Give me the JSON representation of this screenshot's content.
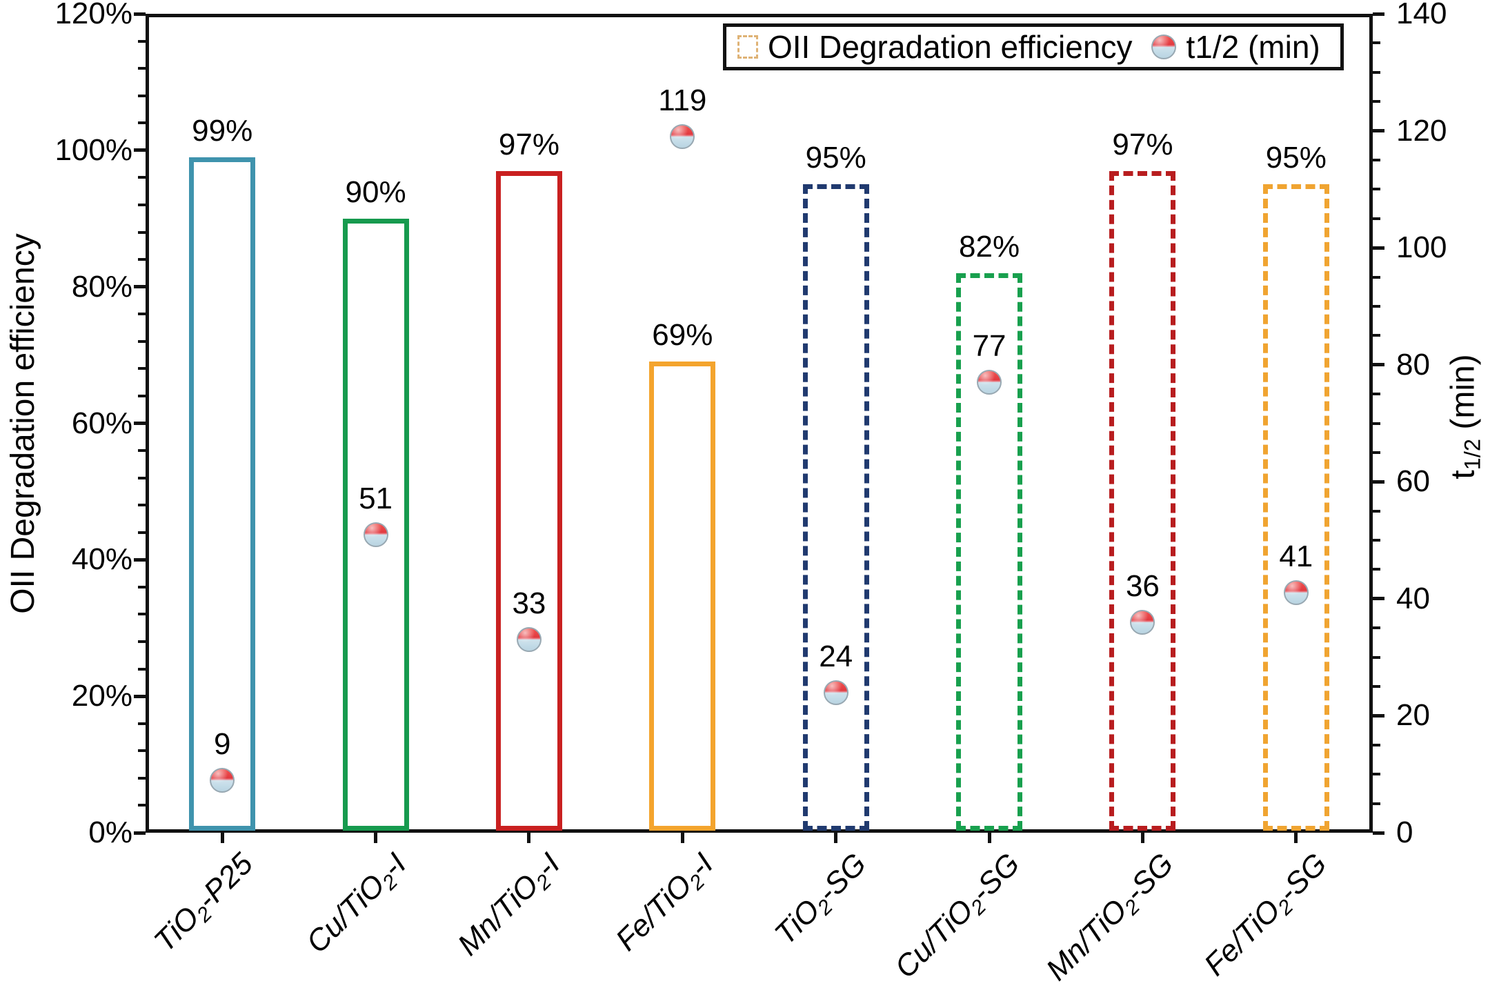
{
  "chart_data": {
    "type": "bar",
    "title": "",
    "categories": [
      {
        "pre": "TiO",
        "sub": "2",
        "post": "-P25"
      },
      {
        "pre": "Cu/TiO",
        "sub": "2",
        "post": "-I"
      },
      {
        "pre": "Mn/TiO",
        "sub": "2",
        "post": "-I"
      },
      {
        "pre": "Fe/TiO",
        "sub": "2",
        "post": "-I"
      },
      {
        "pre": "TiO",
        "sub": "2",
        "post": "-SG"
      },
      {
        "pre": "Cu/TiO",
        "sub": "2",
        "post": "-SG"
      },
      {
        "pre": "Mn/TiO",
        "sub": "2",
        "post": "-SG"
      },
      {
        "pre": "Fe/TiO",
        "sub": "2",
        "post": "-SG"
      }
    ],
    "series": [
      {
        "name": "OII Degradation efficiency",
        "unit": "%",
        "values": [
          99,
          90,
          97,
          69,
          95,
          82,
          97,
          95
        ]
      },
      {
        "name": "t1/2 (min)",
        "unit": "min",
        "values": [
          9,
          51,
          33,
          119,
          24,
          77,
          36,
          41
        ]
      }
    ],
    "bar_labels": [
      "99%",
      "90%",
      "97%",
      "69%",
      "95%",
      "82%",
      "97%",
      "95%"
    ],
    "marker_labels": [
      "9",
      "51",
      "33",
      "119",
      "24",
      "77",
      "36",
      "41"
    ],
    "bar_colors": [
      "#3f93ad",
      "#169a4e",
      "#c92020",
      "#f4a42d",
      "#203a6f",
      "#18a04e",
      "#b81d1f",
      "#f0a431"
    ],
    "bar_dashed": [
      false,
      false,
      false,
      false,
      true,
      true,
      true,
      true
    ],
    "left_axis": {
      "label": "OII Degradation efficiency",
      "min": 0,
      "max": 120,
      "major_step": 20,
      "minor_step": 4,
      "ticks": [
        "0%",
        "20%",
        "40%",
        "60%",
        "80%",
        "100%",
        "120%"
      ]
    },
    "right_axis": {
      "label_pre": "t",
      "label_sub": "1/2",
      "label_post": " (min)",
      "min": 0,
      "max": 140,
      "major_step": 20,
      "minor_step": 5,
      "ticks": [
        "0",
        "20",
        "40",
        "60",
        "80",
        "100",
        "120",
        "140"
      ]
    },
    "legend": [
      {
        "label": "OII Degradation efficiency",
        "swatch": "dashed-box",
        "swatch_color": "#dfb376"
      },
      {
        "label": "t1/2 (min)",
        "swatch": "half-red-blue-circle"
      }
    ],
    "layout": {
      "grid": false,
      "legend_position": "top-right",
      "bar_fill": "none"
    }
  }
}
